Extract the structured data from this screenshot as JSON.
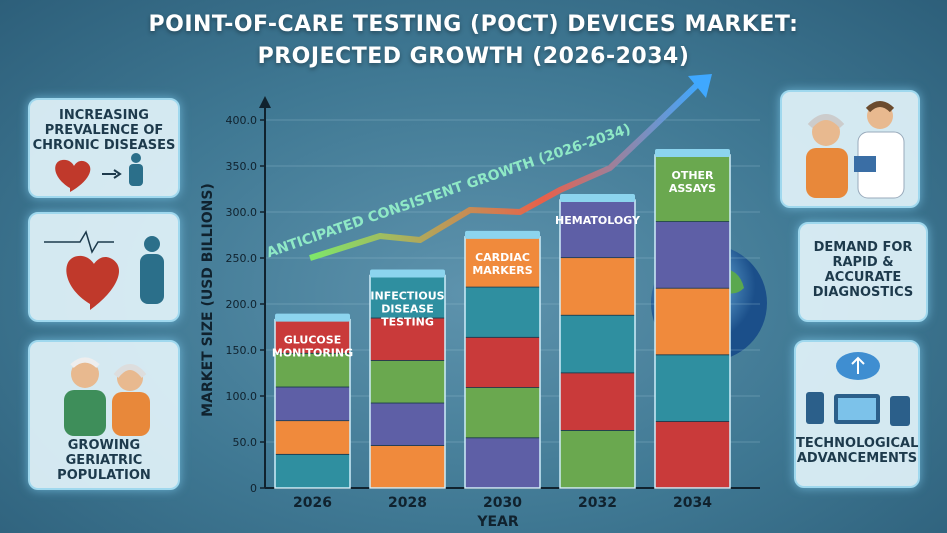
{
  "title": {
    "line1": "POINT-OF-CARE TESTING (POCT) DEVICES MARKET:",
    "line2": "PROJECTED GROWTH (2026-2034)"
  },
  "cards": {
    "chronic": "INCREASING PREVALENCE OF CHRONIC DISEASES",
    "geriatric": "GROWING GERIATRIC POPULATION",
    "demand": "DEMAND FOR RAPID & ACCURATE DIAGNOSTICS",
    "tech": "TECHNOLOGICAL ADVANCEMENTS"
  },
  "colors": {
    "teal": "#2f8fa0",
    "orange": "#f08a3c",
    "purple": "#5e5fa6",
    "green": "#6aa84f",
    "red": "#c93a3a",
    "arrow": "#5ee0a8"
  },
  "chart_data": {
    "type": "bar",
    "title": "",
    "xlabel": "YEAR",
    "ylabel": "MARKET SIZE (USD BILLIONS)",
    "ylim": [
      0,
      400
    ],
    "y_ticks": [
      "0",
      "50.0",
      "100.0",
      "150.0",
      "200.0",
      "250.0",
      "300.0",
      "350.0",
      "400.0"
    ],
    "categories": [
      "2026",
      "2028",
      "2030",
      "2032",
      "2034"
    ],
    "values": [
      183,
      231,
      273,
      313,
      362
    ],
    "segment_labels": [
      "GLUCOSE MONITORING",
      "INFECTIOUS DISEASE TESTING",
      "CARDIAC MARKERS",
      "HEMATOLOGY",
      "OTHER ASSAYS"
    ],
    "annotation": "ANTICIPATED CONSISTENT GROWTH (2026-2034)"
  }
}
